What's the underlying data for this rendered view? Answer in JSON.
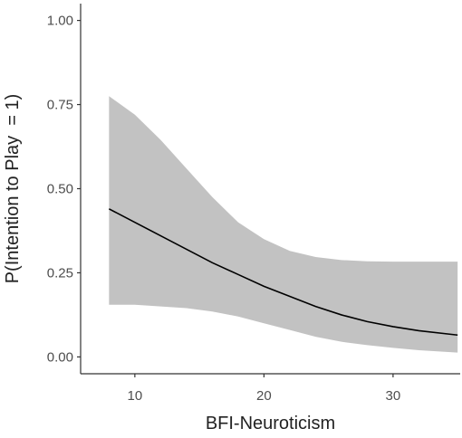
{
  "chart_data": {
    "type": "line",
    "title": "",
    "xlabel": "BFI-Neuroticism",
    "ylabel": "P(Intention to Play  = 1)",
    "xlim": [
      5.8,
      35.2
    ],
    "ylim": [
      -0.05,
      1.05
    ],
    "x_ticks": [
      10,
      20,
      30
    ],
    "x_tick_labels": [
      "10",
      "20",
      "30"
    ],
    "y_ticks": [
      0,
      0.25,
      0.5,
      0.75,
      1.0
    ],
    "y_tick_labels": [
      "0.00",
      "0.25",
      "0.50",
      "0.75",
      "1.00"
    ],
    "grid": false,
    "legend": "none",
    "series": [
      {
        "x": [
          8,
          10,
          12,
          14,
          16,
          18,
          20,
          22,
          24,
          26,
          28,
          30,
          32,
          35
        ],
        "values": [
          0.44,
          0.4,
          0.36,
          0.32,
          0.28,
          0.245,
          0.21,
          0.18,
          0.15,
          0.125,
          0.105,
          0.09,
          0.078,
          0.065
        ],
        "lower": [
          0.155,
          0.155,
          0.15,
          0.145,
          0.135,
          0.12,
          0.1,
          0.08,
          0.06,
          0.045,
          0.035,
          0.027,
          0.02,
          0.013
        ],
        "upper": [
          0.775,
          0.72,
          0.645,
          0.56,
          0.475,
          0.4,
          0.35,
          0.315,
          0.297,
          0.288,
          0.284,
          0.283,
          0.283,
          0.283
        ]
      }
    ],
    "colors": {
      "line": "#000000",
      "ribbon": "#c2c2c2",
      "axis": "#333333",
      "tick_label": "#4d4d4d",
      "axis_title": "#222222"
    }
  }
}
